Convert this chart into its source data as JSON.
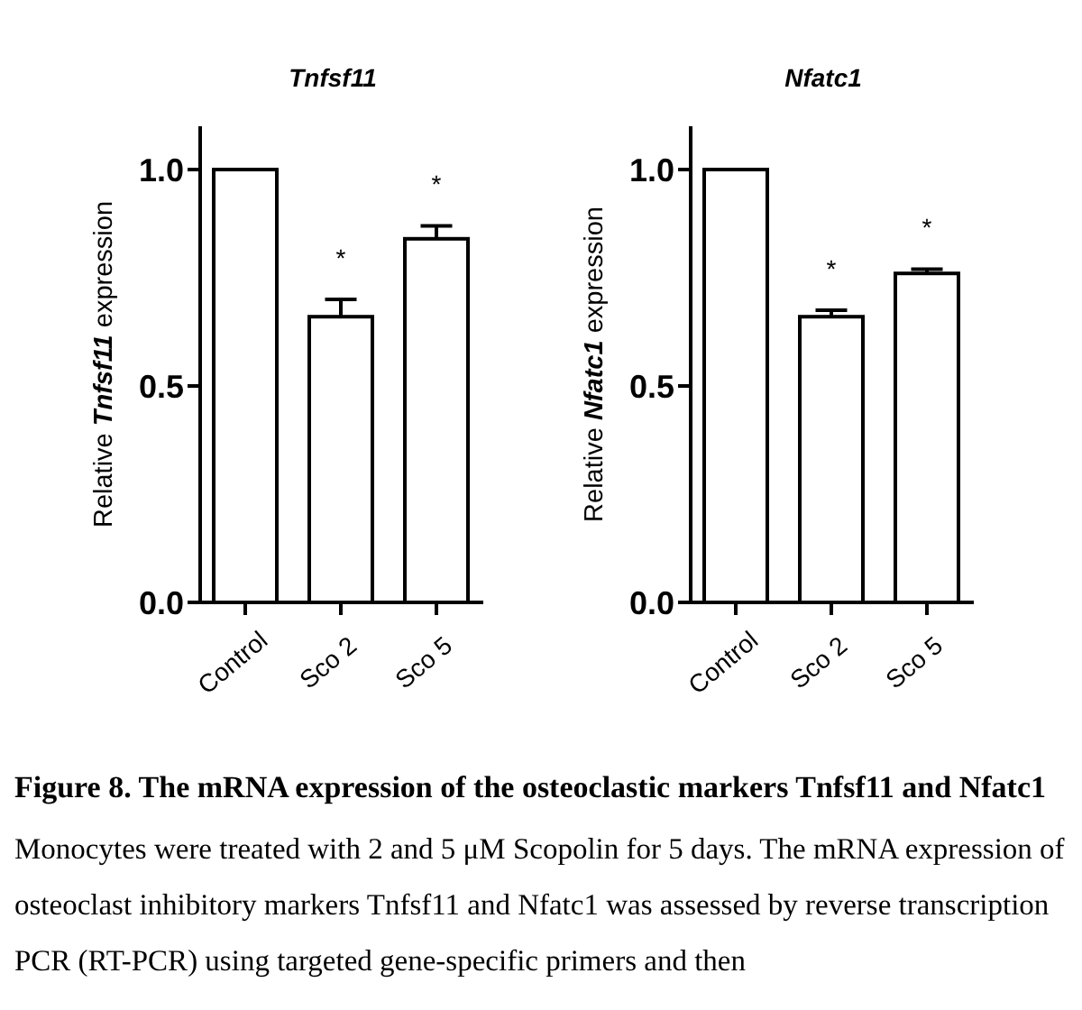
{
  "chart_data": [
    {
      "type": "bar",
      "title": "Tnfsf11",
      "ylabel": "Relative Tnfsf11 expression",
      "categories": [
        "Control",
        "Sco 2",
        "Sco 5"
      ],
      "values": [
        1.0,
        0.66,
        0.84
      ],
      "errors": [
        null,
        0.04,
        0.03
      ],
      "color": "#ffffff",
      "ylim": [
        0,
        1.1
      ],
      "yticks": [
        {
          "value": 0,
          "label": "0.0"
        },
        {
          "value": 0.5,
          "label": "0.5"
        },
        {
          "value": 1,
          "label": "1.0"
        }
      ],
      "annotations": [
        "*",
        "*"
      ]
    },
    {
      "type": "bar",
      "title": "Nfatc1",
      "ylabel": "Relative Nfatc1 expression",
      "categories": [
        "Control",
        "Sco 2",
        "Sco 5"
      ],
      "values": [
        1.0,
        0.66,
        0.76
      ],
      "errors": [
        null,
        0.015,
        0.01
      ],
      "color": "#ffffff",
      "ylim": [
        0,
        1.1
      ],
      "yticks": [
        {
          "value": 0,
          "label": "0.0"
        },
        {
          "value": 0.5,
          "label": "0.5"
        },
        {
          "value": 1,
          "label": "1.0"
        }
      ],
      "annotations": [
        "*",
        "*"
      ]
    },
    {
      "type": "other",
      "title": "Figure 8. The mRNA expression of the osteoclastic markers Tnfsf11 and Nfatc1",
      "annotations": [
        "Monocytes were treated with 2 and 5 μM Scopolin for 5 days. The mRNA expression of osteoclast inhibitory markers Tnfsf11 and Nfatc1 was assessed by reverse transcription PCR (RT-PCR) using targeted gene-specific primers and then"
      ]
    }
  ]
}
